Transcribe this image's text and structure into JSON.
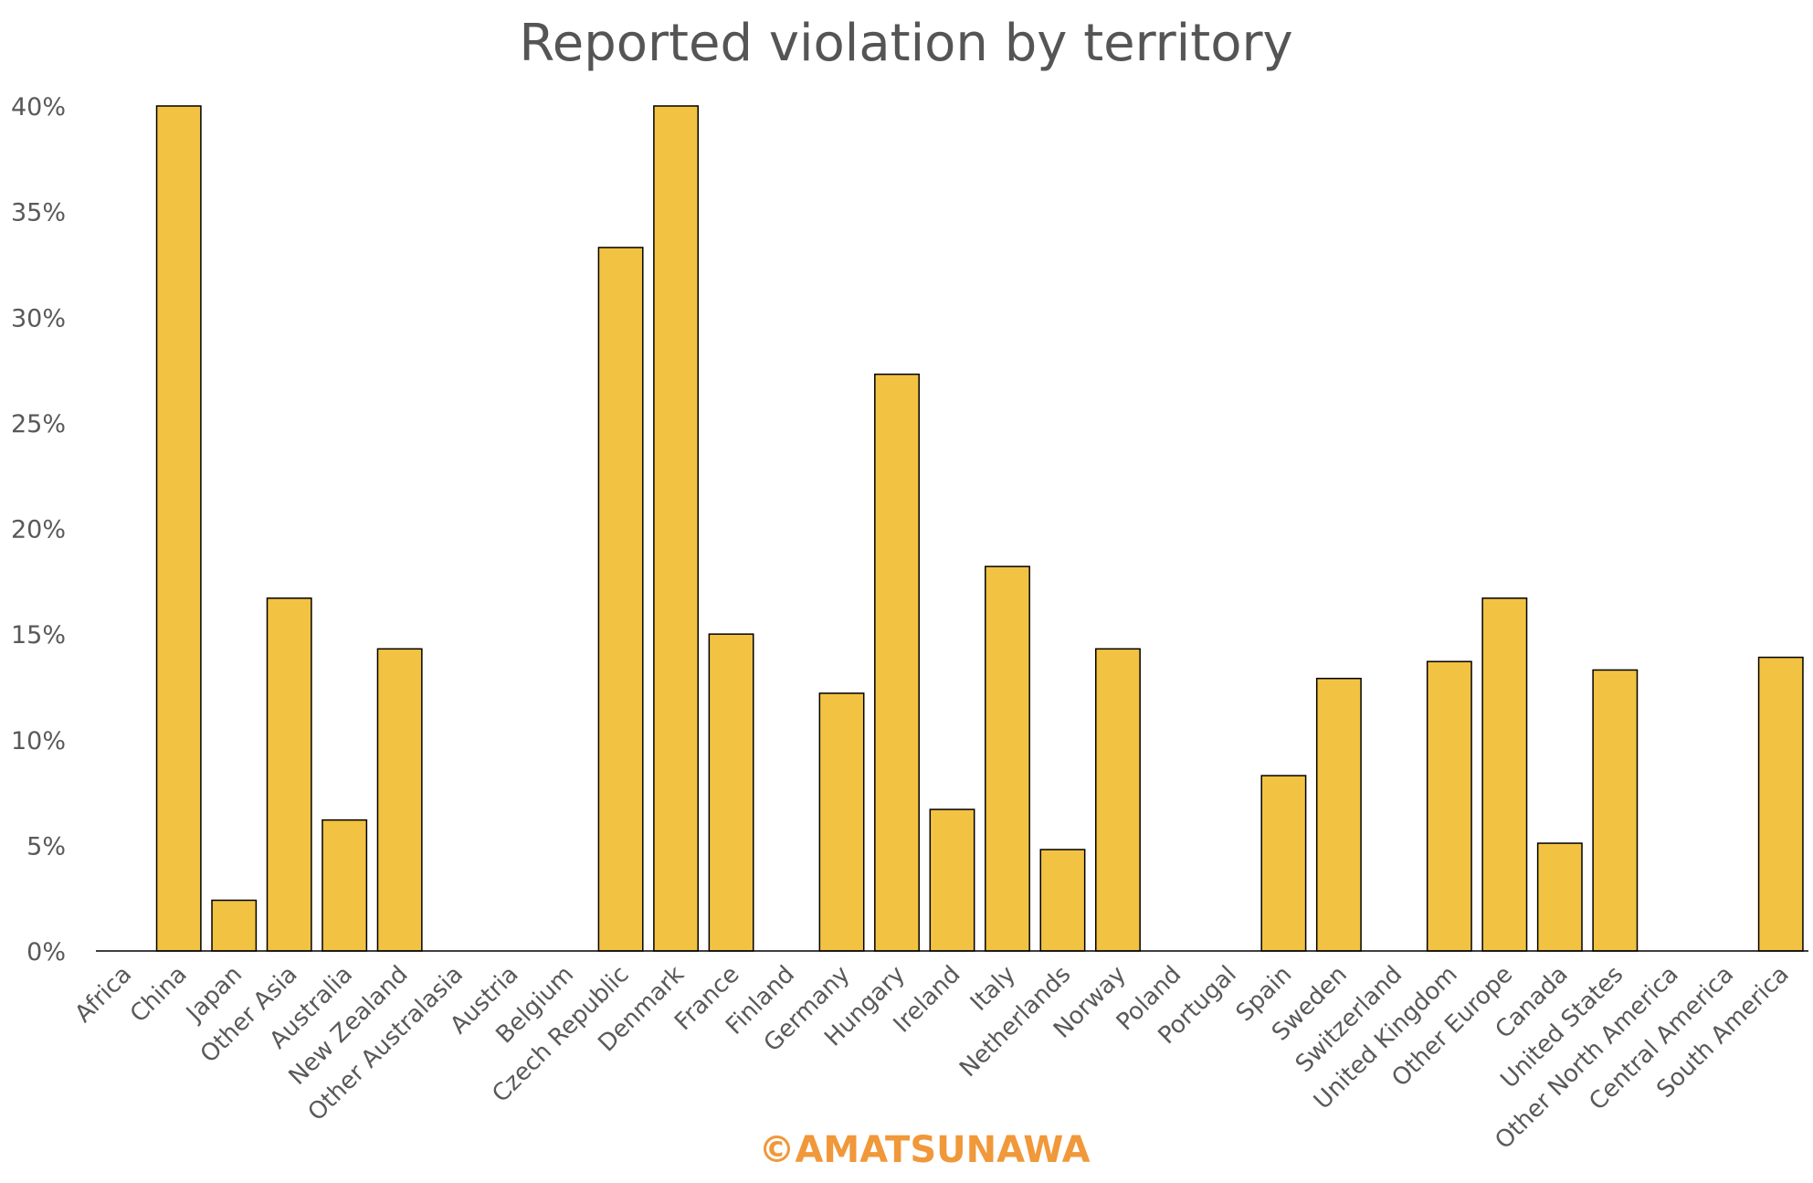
{
  "chart_data": {
    "type": "bar",
    "title": "Reported violation by territory",
    "xlabel": "",
    "ylabel": "",
    "ylim": [
      0,
      40
    ],
    "yticks": [
      0,
      5,
      10,
      15,
      20,
      25,
      30,
      35,
      40
    ],
    "ytick_labels": [
      "0%",
      "5%",
      "10%",
      "15%",
      "20%",
      "25%",
      "30%",
      "35%",
      "40%"
    ],
    "grid": false,
    "legend": "none",
    "categories": [
      "Africa",
      "China",
      "Japan",
      "Other Asia",
      "Australia",
      "New Zealand",
      "Other Australasia",
      "Austria",
      "Belgium",
      "Czech Republic",
      "Denmark",
      "France",
      "Finland",
      "Germany",
      "Hungary",
      "Ireland",
      "Italy",
      "Netherlands",
      "Norway",
      "Poland",
      "Portugal",
      "Spain",
      "Sweden",
      "Switzerland",
      "United Kingdom",
      "Other Europe",
      "Canada",
      "United States",
      "Other North America",
      "Central America",
      "South America"
    ],
    "values": [
      0,
      40.0,
      2.4,
      16.7,
      6.2,
      14.3,
      0,
      0,
      0,
      33.3,
      40.0,
      15.0,
      0,
      12.2,
      27.3,
      6.7,
      18.2,
      4.8,
      14.3,
      0,
      0,
      8.3,
      12.9,
      0,
      13.7,
      16.7,
      5.1,
      13.3,
      0,
      0,
      13.9
    ]
  },
  "colors": {
    "bar_fill": "#F2C242",
    "bar_stroke": "#000000",
    "watermark": "#F0983A"
  },
  "watermark": "©AMATSUNAWA"
}
